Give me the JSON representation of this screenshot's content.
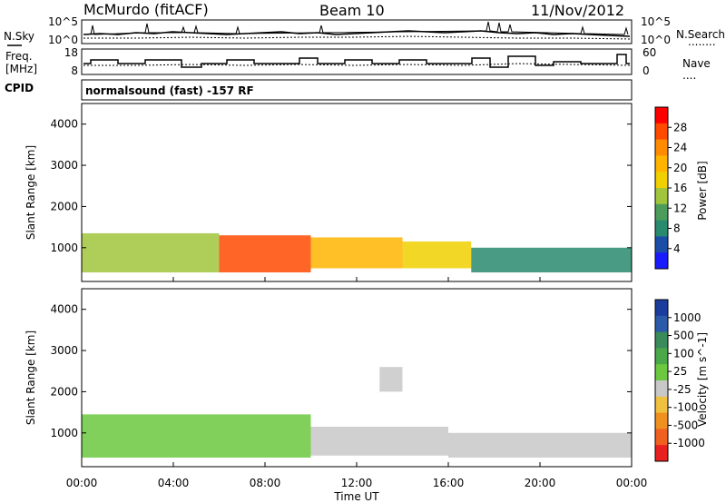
{
  "header": {
    "station": "McMurdo (fitACF)",
    "beam": "Beam 10",
    "date": "11/Nov/2012"
  },
  "left_labels": {
    "nsky": "N.Sky",
    "freq": "Freq.",
    "freq_unit": "[MHz]",
    "cpid": "CPID"
  },
  "right_labels": {
    "nsearch": "N.Search",
    "nsearch_dots": "........",
    "nave": "Nave",
    "nave_dots": "...."
  },
  "cpid_text": "normalsound (fast) -157 RF",
  "noise_panel": {
    "ytick_top_left": "10^5",
    "ytick_bottom_left": "10^0",
    "ytick_top_right": "10^5",
    "ytick_bottom_right": "10^0"
  },
  "freq_panel": {
    "ytick_top_left": "18",
    "ytick_bottom_left": "8",
    "ytick_top_right": "60",
    "ytick_bottom_right": "0"
  },
  "x_axis": {
    "label": "Time UT",
    "ticks": [
      "00:00",
      "04:00",
      "08:00",
      "12:00",
      "16:00",
      "20:00",
      "00:00"
    ]
  },
  "power_panel": {
    "ylabel": "Slant Range [km]",
    "yticks": [
      "4000",
      "3000",
      "2000",
      "1000"
    ],
    "colorbar_label": "Power [dB]",
    "colorbar_ticks": [
      "28",
      "24",
      "20",
      "16",
      "12",
      "8",
      "4"
    ],
    "colorbar_colors": [
      "#ff0000",
      "#ff4a00",
      "#ff8c00",
      "#ffb400",
      "#f0d000",
      "#a0c43c",
      "#4c9c5c",
      "#2a8a6e",
      "#1c4ea8",
      "#1a1aff"
    ]
  },
  "velocity_panel": {
    "ylabel": "Slant Range [km]",
    "yticks": [
      "4000",
      "3000",
      "2000",
      "1000"
    ],
    "colorbar_label": "Velocity [m s^-1]",
    "colorbar_ticks": [
      "1000",
      "500",
      "100",
      "25",
      "-25",
      "-100",
      "-500",
      "-1000"
    ],
    "colorbar_colors": [
      "#1a3c9c",
      "#2a5aa8",
      "#3a8a5a",
      "#4aa84a",
      "#6cc840",
      "#c8c8c8",
      "#f0c040",
      "#f09020",
      "#f06020",
      "#e82020"
    ]
  },
  "chart_data": {
    "type": "heatmap",
    "title": "McMurdo (fitACF) Beam 10 11/Nov/2012",
    "xlabel": "Time UT",
    "ylabel": "Slant Range [km]",
    "x_range_hours": [
      0,
      24
    ],
    "y_range_km": [
      180,
      4500
    ],
    "panels": [
      {
        "name": "Power [dB]",
        "range": [
          0,
          30
        ],
        "bands": [
          {
            "t0": 0,
            "t1": 6,
            "r0": 400,
            "r1": 1350,
            "value": 14
          },
          {
            "t0": 6,
            "t1": 10,
            "r0": 400,
            "r1": 1300,
            "value": 26
          },
          {
            "t0": 10,
            "t1": 14,
            "r0": 500,
            "r1": 1250,
            "value": 20
          },
          {
            "t0": 14,
            "t1": 17,
            "r0": 500,
            "r1": 1150,
            "value": 16
          },
          {
            "t0": 17,
            "t1": 24,
            "r0": 400,
            "r1": 1000,
            "value": 8
          }
        ]
      },
      {
        "name": "Velocity [m s^-1]",
        "range": [
          -1000,
          1000
        ],
        "bands": [
          {
            "t0": 0,
            "t1": 10,
            "r0": 400,
            "r1": 1450,
            "value": 100
          },
          {
            "t0": 10,
            "t1": 16,
            "r0": 450,
            "r1": 1150,
            "value": -100
          },
          {
            "t0": 13,
            "t1": 14,
            "r0": 2000,
            "r1": 2600,
            "value": -100
          },
          {
            "t0": 16,
            "t1": 24,
            "r0": 400,
            "r1": 1000,
            "value": -50
          }
        ]
      }
    ]
  }
}
